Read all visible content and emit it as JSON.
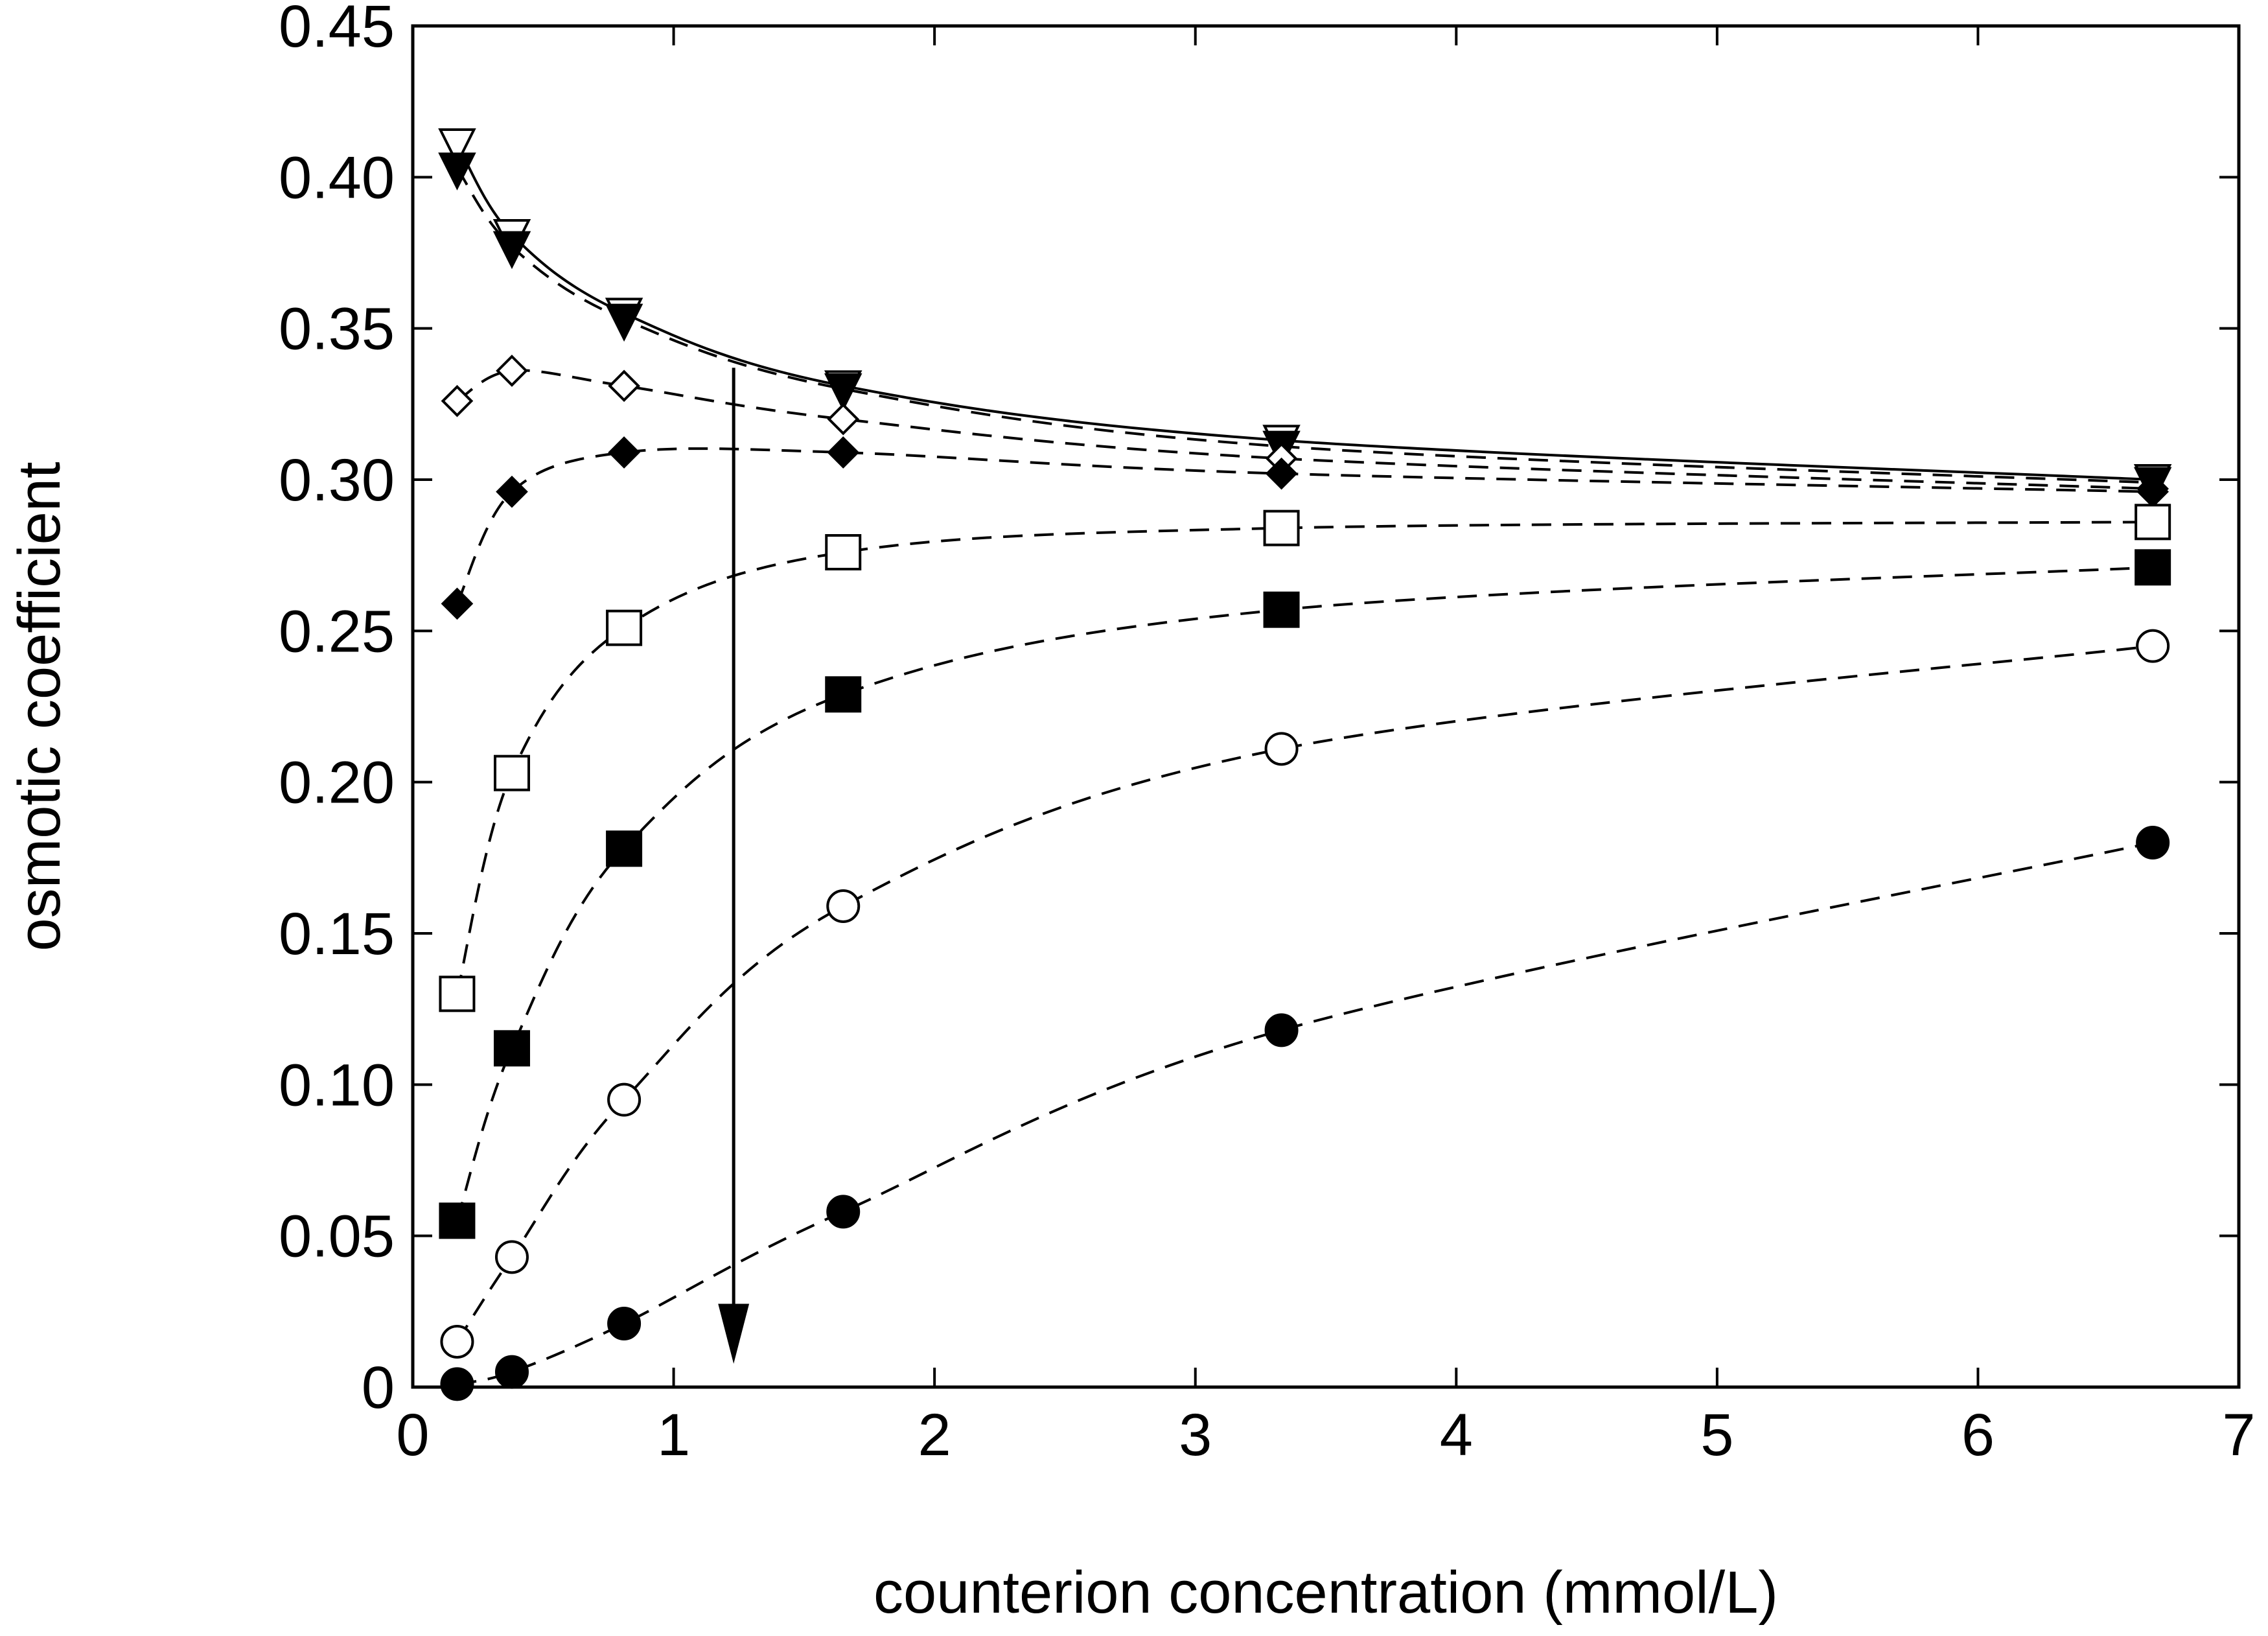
{
  "chart_data": {
    "type": "scatter",
    "title": "",
    "xlabel": "counterion concentration (mmol/L)",
    "ylabel": "osmotic coefficient",
    "xlim": [
      0,
      7
    ],
    "ylim": [
      0,
      0.45
    ],
    "xticks": [
      0,
      1,
      2,
      3,
      4,
      5,
      6,
      7
    ],
    "xtick_labels": [
      "0",
      "1",
      "2",
      "3",
      "4",
      "5",
      "6",
      "7"
    ],
    "yticks": [
      0,
      0.05,
      0.1,
      0.15,
      0.2,
      0.25,
      0.3,
      0.35,
      0.4,
      0.45
    ],
    "ytick_labels": [
      "0",
      "0.05",
      "0.10",
      "0.15",
      "0.20",
      "0.25",
      "0.30",
      "0.35",
      "0.40",
      "0.45"
    ],
    "grid": false,
    "legend": "none",
    "series": [
      {
        "marker": "triangle-down-open",
        "line": "solid",
        "x": [
          0.17,
          0.38,
          0.81,
          1.65,
          3.33,
          6.67
        ],
        "y": [
          0.411,
          0.381,
          0.355,
          0.331,
          0.313,
          0.3
        ]
      },
      {
        "marker": "triangle-down-filled",
        "line": "dashed",
        "x": [
          0.17,
          0.38,
          0.81,
          1.65,
          3.33,
          6.67
        ],
        "y": [
          0.403,
          0.377,
          0.353,
          0.33,
          0.311,
          0.299
        ]
      },
      {
        "marker": "diamond-open",
        "line": "dashed",
        "x": [
          0.17,
          0.38,
          0.81,
          1.65,
          3.33,
          6.67
        ],
        "y": [
          0.326,
          0.336,
          0.331,
          0.32,
          0.307,
          0.297
        ]
      },
      {
        "marker": "diamond-filled",
        "line": "dashed",
        "x": [
          0.17,
          0.38,
          0.81,
          1.65,
          3.33,
          6.67
        ],
        "y": [
          0.259,
          0.296,
          0.309,
          0.309,
          0.302,
          0.296
        ]
      },
      {
        "marker": "square-open",
        "line": "dashed",
        "x": [
          0.17,
          0.38,
          0.81,
          1.65,
          3.33,
          6.67
        ],
        "y": [
          0.13,
          0.203,
          0.251,
          0.276,
          0.284,
          0.286
        ]
      },
      {
        "marker": "square-filled",
        "line": "dashed",
        "x": [
          0.17,
          0.38,
          0.81,
          1.65,
          3.33,
          6.67
        ],
        "y": [
          0.055,
          0.112,
          0.178,
          0.229,
          0.257,
          0.271
        ]
      },
      {
        "marker": "circle-open",
        "line": "dashed",
        "x": [
          0.17,
          0.38,
          0.81,
          1.65,
          3.33,
          6.67
        ],
        "y": [
          0.015,
          0.043,
          0.095,
          0.159,
          0.211,
          0.245
        ]
      },
      {
        "marker": "circle-filled",
        "line": "dashed",
        "x": [
          0.17,
          0.38,
          0.81,
          1.65,
          3.33,
          6.67
        ],
        "y": [
          0.001,
          0.005,
          0.021,
          0.058,
          0.118,
          0.18
        ]
      }
    ],
    "annotations": [
      {
        "type": "arrow",
        "from": [
          1.23,
          0.337
        ],
        "to": [
          1.23,
          0.009
        ]
      }
    ],
    "colors": {
      "ink": "#000000",
      "background": "#ffffff"
    }
  }
}
